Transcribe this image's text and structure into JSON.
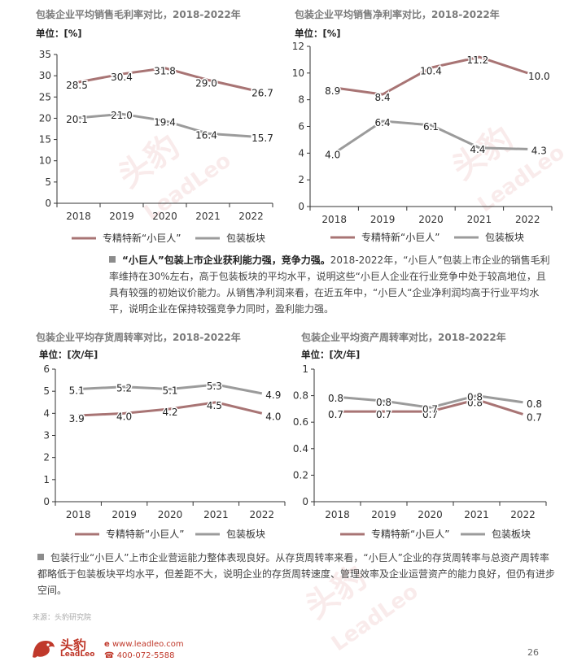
{
  "chart_data": [
    {
      "type": "line",
      "title": "包装企业平均销售毛利率对比，2018-2022年",
      "unit": "单位：[%]",
      "categories": [
        "2018",
        "2019",
        "2020",
        "2021",
        "2022"
      ],
      "ylim": [
        0,
        35
      ],
      "yticks": [
        0,
        5,
        10,
        15,
        20,
        25,
        30,
        35
      ],
      "series": [
        {
          "name": "专精特新“小巨人”",
          "values": [
            28.5,
            30.4,
            31.8,
            29.0,
            26.7
          ],
          "labels": [
            "28.5",
            "30.4",
            "31.8",
            "29.0",
            "26.7"
          ],
          "color": "#a87474"
        },
        {
          "name": "包装板块",
          "values": [
            20.1,
            21.0,
            19.4,
            16.4,
            15.7
          ],
          "labels": [
            "20.1",
            "21.0",
            "19.4",
            "16.4",
            "15.7"
          ],
          "color": "#9b9b9b"
        }
      ]
    },
    {
      "type": "line",
      "title": "包装企业平均销售净利率对比，2018-2022年",
      "unit": "单位：[%]",
      "categories": [
        "2018",
        "2019",
        "2020",
        "2021",
        "2022"
      ],
      "ylim": [
        0,
        12
      ],
      "yticks": [
        0,
        2,
        4,
        6,
        8,
        10,
        12
      ],
      "series": [
        {
          "name": "专精特新“小巨人”",
          "values": [
            8.9,
            8.4,
            10.4,
            11.2,
            10.0
          ],
          "labels": [
            "8.9",
            "8.4",
            "10.4",
            "11.2",
            "10.0"
          ],
          "color": "#a87474"
        },
        {
          "name": "包装板块",
          "values": [
            4.0,
            6.4,
            6.1,
            4.4,
            4.3
          ],
          "labels": [
            "4.0",
            "6.4",
            "6.1",
            "4.4",
            "4.3"
          ],
          "color": "#9b9b9b"
        }
      ]
    },
    {
      "type": "line",
      "title": "包装企业平均存货周转率对比，2018-2022年",
      "unit": "单位：[次/年]",
      "categories": [
        "2018",
        "2019",
        "2020",
        "2021",
        "2022"
      ],
      "ylim": [
        0,
        6
      ],
      "yticks": [
        0,
        1,
        2,
        3,
        4,
        5,
        6
      ],
      "series": [
        {
          "name": "专精特新“小巨人”",
          "values": [
            3.9,
            4.0,
            4.2,
            4.5,
            4.0
          ],
          "labels": [
            "3.9",
            "4.0",
            "4.2",
            "4.5",
            "4.0"
          ],
          "color": "#a87474"
        },
        {
          "name": "包装板块",
          "values": [
            5.1,
            5.2,
            5.1,
            5.3,
            4.9
          ],
          "labels": [
            "5.1",
            "5.2",
            "5.1",
            "5.3",
            "4.9"
          ],
          "color": "#9b9b9b"
        }
      ]
    },
    {
      "type": "line",
      "title": "包装企业平均资产周转率对比，2018-2022年",
      "unit": "单位：[次/年]",
      "categories": [
        "2018",
        "2019",
        "2020",
        "2021",
        "2022"
      ],
      "ylim": [
        0,
        1
      ],
      "yticks": [
        0,
        0.2,
        0.4,
        0.6,
        0.8,
        1
      ],
      "ytick_labels": [
        "0",
        "0.2",
        "0.4",
        "0.6",
        "0.8",
        "1"
      ],
      "series": [
        {
          "name": "专精特新“小巨人”",
          "values": [
            0.68,
            0.68,
            0.68,
            0.77,
            0.66
          ],
          "labels": [
            "0.7",
            "0.7",
            "0.7",
            "0.8",
            "0.7"
          ],
          "color": "#a87474"
        },
        {
          "name": "包装板块",
          "values": [
            0.79,
            0.76,
            0.71,
            0.8,
            0.75
          ],
          "labels": [
            "0.8",
            "0.8",
            "0.7",
            "0.8",
            "0.8"
          ],
          "color": "#9b9b9b"
        }
      ]
    }
  ],
  "para1": {
    "bold": "“小巨人”包装上市企业获利能力强，竞争力强。",
    "text": "2018-2022年，“小巨人”包装上市企业的销售毛利率维持在30%左右，高于包装板块的平均水平，说明这些“小巨人企业在行业竞争中处于较高地位，且具有较强的初始议价能力。从销售净利润来看，在近五年中，“小巨人“企业净利润均高于行业平均水平，说明企业在保持较强竞争力同时，盈利能力强。"
  },
  "para2": {
    "text": "包装行业“小巨人”上市企业营运能力整体表现良好。从存货周转率来看，“小巨人”企业的存货周转率与总资产周转率都略低于包装板块平均水平，但差距不大，说明企业的存货周转速度、管理效率及企业运营资产的能力良好，但仍有进步空间。"
  },
  "footer": {
    "source": "来源：头豹研究院",
    "logo_cn": "头豹",
    "logo_en": "LeadLeo",
    "website": "www.leadleo.com",
    "phone": "400-072-5588",
    "page": "26"
  },
  "watermark": {
    "cn": "头豹",
    "en": "LeadLeo"
  },
  "colors": {
    "brand_red": "#c0392b",
    "series_a": "#a87474",
    "series_b": "#9b9b9b"
  }
}
